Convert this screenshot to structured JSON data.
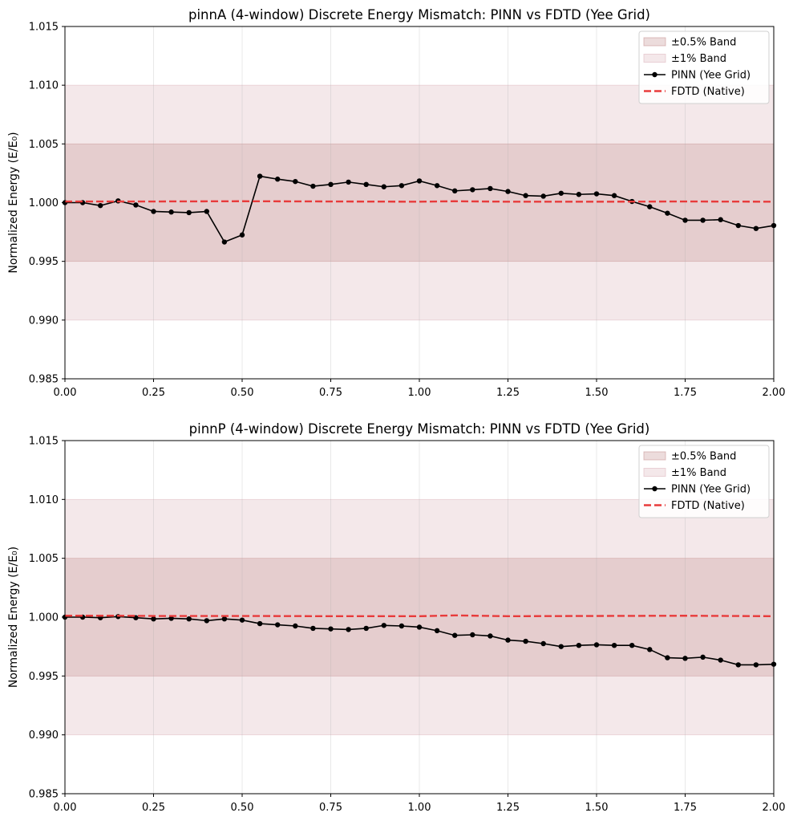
{
  "chart_data": [
    {
      "type": "line",
      "title": "pinnA (4-window) Discrete Energy Mismatch: PINN vs FDTD (Yee Grid)",
      "xlabel": "",
      "ylabel": "Normalized Energy (E/E₀)",
      "xlim": [
        0,
        2
      ],
      "ylim": [
        0.985,
        1.015
      ],
      "xticks": [
        "0.00",
        "0.25",
        "0.50",
        "0.75",
        "1.00",
        "1.25",
        "1.50",
        "1.75",
        "2.00"
      ],
      "yticks": [
        "0.985",
        "0.990",
        "0.995",
        "1.000",
        "1.005",
        "1.010",
        "1.015"
      ],
      "grid": "vertical",
      "legend_position": "top-right",
      "bands": [
        {
          "name": "±0.5% Band",
          "range": [
            0.995,
            1.005
          ],
          "color": "#c99a9a"
        },
        {
          "name": "±1% Band",
          "range": [
            0.99,
            1.01
          ],
          "color": "#ddb7bf"
        }
      ],
      "series": [
        {
          "name": "PINN (Yee Grid)",
          "color": "#000000",
          "style": "solid-with-markers",
          "x": [
            0,
            0.05,
            0.1,
            0.15,
            0.2,
            0.25,
            0.3,
            0.35,
            0.4,
            0.45,
            0.5,
            0.55,
            0.6,
            0.65,
            0.7,
            0.75,
            0.8,
            0.85,
            0.9,
            0.95,
            1.0,
            1.05,
            1.1,
            1.15,
            1.2,
            1.25,
            1.3,
            1.35,
            1.4,
            1.45,
            1.5,
            1.55,
            1.6,
            1.65,
            1.7,
            1.75,
            1.8,
            1.85,
            1.9,
            1.95,
            2.0
          ],
          "y": [
            1.0,
            1.0,
            0.99975,
            1.00015,
            0.9998,
            0.99925,
            0.9992,
            0.99915,
            0.99925,
            0.99665,
            0.99725,
            1.00225,
            1.002,
            1.0018,
            1.0014,
            1.00155,
            1.00175,
            1.00155,
            1.00135,
            1.00145,
            1.00185,
            1.00145,
            1.001,
            1.0011,
            1.0012,
            1.00095,
            1.0006,
            1.00055,
            1.0008,
            1.0007,
            1.00075,
            1.0006,
            1.0001,
            0.99965,
            0.9991,
            0.9985,
            0.9985,
            0.99855,
            0.99805,
            0.9978,
            0.99805
          ]
        },
        {
          "name": "FDTD (Native)",
          "color": "#e83b3b",
          "style": "dashed",
          "x": [
            0,
            0.25,
            0.5,
            0.75,
            1.0,
            1.1,
            1.25,
            1.5,
            1.75,
            2.0
          ],
          "y": [
            1.0001,
            1.0001,
            1.00012,
            1.0001,
            1.00008,
            1.00012,
            1.00008,
            1.00008,
            1.0001,
            1.00008
          ]
        }
      ]
    },
    {
      "type": "line",
      "title": "pinnP (4-window) Discrete Energy Mismatch: PINN vs FDTD (Yee Grid)",
      "xlabel": "",
      "ylabel": "Normalized Energy (E/E₀)",
      "xlim": [
        0,
        2
      ],
      "ylim": [
        0.985,
        1.015
      ],
      "xticks": [
        "0.00",
        "0.25",
        "0.50",
        "0.75",
        "1.00",
        "1.25",
        "1.50",
        "1.75",
        "2.00"
      ],
      "yticks": [
        "0.985",
        "0.990",
        "0.995",
        "1.000",
        "1.005",
        "1.010",
        "1.015"
      ],
      "grid": "vertical",
      "legend_position": "top-right",
      "bands": [
        {
          "name": "±0.5% Band",
          "range": [
            0.995,
            1.005
          ],
          "color": "#c99a9a"
        },
        {
          "name": "±1% Band",
          "range": [
            0.99,
            1.01
          ],
          "color": "#ddb7bf"
        }
      ],
      "series": [
        {
          "name": "PINN (Yee Grid)",
          "color": "#000000",
          "style": "solid-with-markers",
          "x": [
            0,
            0.05,
            0.1,
            0.15,
            0.2,
            0.25,
            0.3,
            0.35,
            0.4,
            0.45,
            0.5,
            0.55,
            0.6,
            0.65,
            0.7,
            0.75,
            0.8,
            0.85,
            0.9,
            0.95,
            1.0,
            1.05,
            1.1,
            1.15,
            1.2,
            1.25,
            1.3,
            1.35,
            1.4,
            1.45,
            1.5,
            1.55,
            1.6,
            1.65,
            1.7,
            1.75,
            1.8,
            1.85,
            1.9,
            1.95,
            2.0
          ],
          "y": [
            1.0,
            1.0,
            0.99995,
            1.00005,
            0.99995,
            0.99985,
            0.9999,
            0.99985,
            0.9997,
            0.99985,
            0.99975,
            0.99945,
            0.99935,
            0.99925,
            0.99905,
            0.999,
            0.99895,
            0.99905,
            0.9993,
            0.99925,
            0.99915,
            0.99885,
            0.99845,
            0.9985,
            0.9984,
            0.99805,
            0.99795,
            0.99775,
            0.9975,
            0.9976,
            0.99765,
            0.9976,
            0.9976,
            0.99725,
            0.99655,
            0.9965,
            0.9966,
            0.99635,
            0.99595,
            0.99595,
            0.996
          ]
        },
        {
          "name": "FDTD (Native)",
          "color": "#e83b3b",
          "style": "dashed",
          "x": [
            0,
            0.15,
            0.25,
            0.5,
            0.75,
            1.0,
            1.1,
            1.25,
            1.5,
            1.75,
            2.0
          ],
          "y": [
            1.00012,
            1.00012,
            1.0001,
            1.0001,
            1.00008,
            1.00008,
            1.00015,
            1.00008,
            1.0001,
            1.00012,
            1.00008
          ]
        }
      ]
    }
  ]
}
